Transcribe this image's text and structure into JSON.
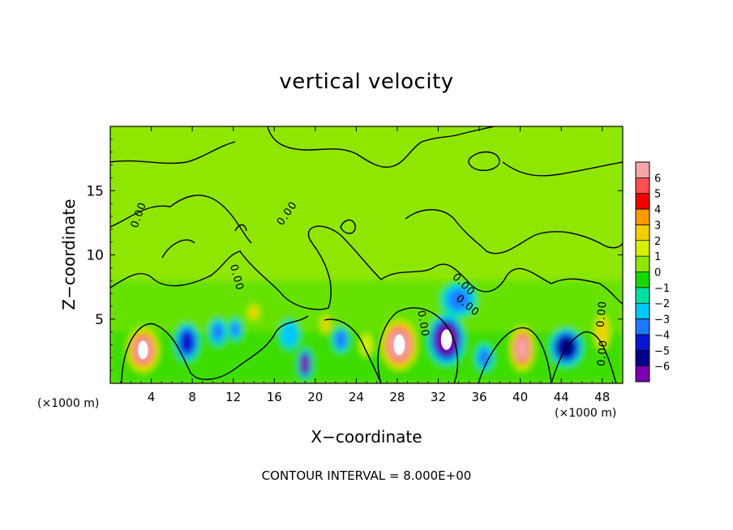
{
  "chart_data": {
    "type": "heatmap",
    "title": "vertical velocity",
    "xlabel": "X−coordinate",
    "ylabel": "Z−coordinate",
    "x_unit_left": "(×1000 m)",
    "x_unit_right": "(×1000 m)",
    "xlim": [
      0,
      50
    ],
    "ylim": [
      0,
      20
    ],
    "x_ticks": [
      4,
      8,
      12,
      16,
      20,
      24,
      28,
      32,
      36,
      40,
      44,
      48
    ],
    "y_ticks": [
      5,
      10,
      15
    ],
    "colorbar": {
      "labels": [
        "6",
        "5",
        "4",
        "3",
        "2",
        "1",
        "0",
        "−1",
        "−2",
        "−3",
        "−4",
        "−5",
        "−6"
      ],
      "colors": [
        "#f5a6a6",
        "#ff5050",
        "#f00000",
        "#ff9900",
        "#f2cf00",
        "#d6f000",
        "#8fe600",
        "#16d900",
        "#00e0a0",
        "#00c8ff",
        "#1e78ff",
        "#0a14d0",
        "#00008c",
        "#7a00b0"
      ]
    },
    "cells": [
      {
        "x": 3.2,
        "z": 2.6,
        "w": 6,
        "r": 1.6,
        "rz": 1.8
      },
      {
        "x": 7.5,
        "z": 3.2,
        "w": -3.8,
        "r": 1.2,
        "rz": 1.5
      },
      {
        "x": 10.5,
        "z": 4,
        "w": -2.4,
        "r": 0.9,
        "rz": 1.1
      },
      {
        "x": 14,
        "z": 5.5,
        "w": 2.8,
        "r": 0.6,
        "rz": 0.7
      },
      {
        "x": 19,
        "z": 1.5,
        "w": -5.5,
        "r": 0.7,
        "rz": 1.2
      },
      {
        "x": 21,
        "z": 4.6,
        "w": 3,
        "r": 0.5,
        "rz": 0.8
      },
      {
        "x": 22.5,
        "z": 3.4,
        "w": -2.5,
        "r": 0.8,
        "rz": 1
      },
      {
        "x": 28.2,
        "z": 3,
        "w": 6.5,
        "r": 1.8,
        "rz": 2
      },
      {
        "x": 32.8,
        "z": 3.4,
        "w": -6.2,
        "r": 1.8,
        "rz": 2
      },
      {
        "x": 34,
        "z": 6.5,
        "w": -2.2,
        "r": 1.8,
        "rz": 1.4
      },
      {
        "x": 40.2,
        "z": 2.7,
        "w": 5.8,
        "r": 1.2,
        "rz": 1.8
      },
      {
        "x": 44.5,
        "z": 2.8,
        "w": -4.5,
        "r": 1.6,
        "rz": 1.5
      },
      {
        "x": 12.2,
        "z": 4.2,
        "w": -2.2,
        "r": 0.7,
        "rz": 0.9
      },
      {
        "x": 17.5,
        "z": 3.8,
        "w": -1.8,
        "r": 1,
        "rz": 1.2
      },
      {
        "x": 25,
        "z": 3,
        "w": 2,
        "r": 0.7,
        "rz": 1
      },
      {
        "x": 36.5,
        "z": 2,
        "w": -2,
        "r": 0.9,
        "rz": 1.1
      },
      {
        "x": 48,
        "z": 4,
        "w": 2.5,
        "r": 0.8,
        "rz": 1.5
      }
    ],
    "contour_labels": [
      "0.00",
      "0.00",
      "0.00",
      "0.00",
      "0.00",
      "0.00",
      "0.00",
      "0.00"
    ]
  },
  "footnote": "CONTOUR INTERVAL = 8.000E+00"
}
